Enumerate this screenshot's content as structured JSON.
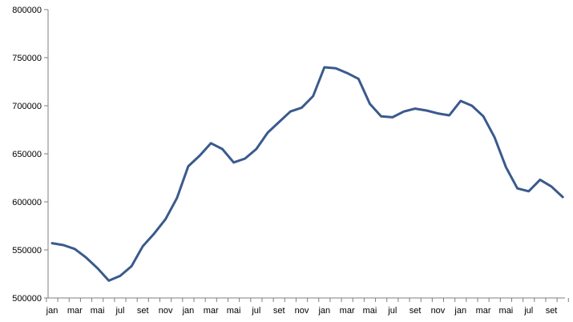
{
  "chart_data": {
    "type": "line",
    "title": "",
    "xlabel": "",
    "ylabel": "",
    "ylim": [
      500000,
      800000
    ],
    "yticks": [
      "500000",
      "550000",
      "600000",
      "650000",
      "700000",
      "750000",
      "800000"
    ],
    "xtick_labels": [
      "jan",
      "mar",
      "mai",
      "jul",
      "set",
      "nov",
      "jan",
      "mar",
      "mai",
      "jul",
      "set",
      "nov",
      "jan",
      "mar",
      "mai",
      "jul",
      "set",
      "nov",
      "jan",
      "mar",
      "mai",
      "jul",
      "set"
    ],
    "grid": false,
    "legend": "none",
    "colors": {
      "line": "#3a5a8c",
      "axis": "#7f7f7f"
    },
    "series": [
      {
        "values": [
          557000,
          555000,
          551000,
          542000,
          531000,
          518000,
          523000,
          533000,
          554000,
          567000,
          582000,
          604000,
          637000,
          648000,
          661000,
          655000,
          641000,
          645000,
          655000,
          672000,
          683000,
          694000,
          698000,
          710000,
          740000,
          739000,
          734000,
          728000,
          702000,
          689000,
          688000,
          694000,
          697000,
          695000,
          692000,
          690000,
          705000,
          700000,
          689000,
          667000,
          636000,
          614000,
          611000,
          623000,
          616000,
          605000
        ]
      }
    ]
  }
}
